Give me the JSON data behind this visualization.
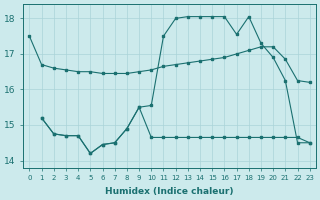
{
  "xlabel": "Humidex (Indice chaleur)",
  "bg_color": "#cceaec",
  "grid_color": "#aad4d8",
  "line_color": "#1a7070",
  "xlim": [
    -0.5,
    23.5
  ],
  "ylim": [
    13.8,
    18.4
  ],
  "yticks": [
    14,
    15,
    16,
    17,
    18
  ],
  "xticks": [
    0,
    1,
    2,
    3,
    4,
    5,
    6,
    7,
    8,
    9,
    10,
    11,
    12,
    13,
    14,
    15,
    16,
    17,
    18,
    19,
    20,
    21,
    22,
    23
  ],
  "line1_x": [
    0,
    1,
    2,
    3,
    4,
    5,
    6,
    7,
    8,
    9,
    10,
    11,
    12,
    13,
    14,
    15,
    16,
    17,
    18,
    19,
    20,
    21,
    22,
    23
  ],
  "line1_y": [
    17.5,
    16.7,
    16.6,
    16.55,
    16.5,
    16.5,
    16.45,
    16.45,
    16.45,
    16.5,
    16.55,
    16.65,
    16.7,
    16.75,
    16.8,
    16.85,
    16.9,
    17.0,
    17.1,
    17.2,
    17.2,
    16.85,
    16.25,
    16.2
  ],
  "line2_x": [
    1,
    2,
    3,
    4,
    5,
    6,
    7,
    8,
    9,
    10,
    11,
    12,
    13,
    14,
    15,
    16,
    17,
    18,
    19,
    20,
    21,
    22,
    23
  ],
  "line2_y": [
    15.2,
    14.75,
    14.7,
    14.7,
    14.2,
    14.45,
    14.5,
    14.9,
    15.5,
    15.55,
    17.5,
    18.0,
    18.05,
    18.05,
    18.05,
    18.05,
    17.55,
    18.05,
    17.3,
    16.9,
    16.25,
    14.5,
    14.5
  ],
  "line3_x": [
    1,
    2,
    3,
    4,
    5,
    6,
    7,
    8,
    9,
    10,
    11,
    12,
    13,
    14,
    15,
    16,
    17,
    18,
    19,
    20,
    21,
    22,
    23
  ],
  "line3_y": [
    15.2,
    14.75,
    14.7,
    14.7,
    14.2,
    14.45,
    14.5,
    14.9,
    15.5,
    14.65,
    14.65,
    14.65,
    14.65,
    14.65,
    14.65,
    14.65,
    14.65,
    14.65,
    14.65,
    14.65,
    14.65,
    14.65,
    14.5
  ]
}
